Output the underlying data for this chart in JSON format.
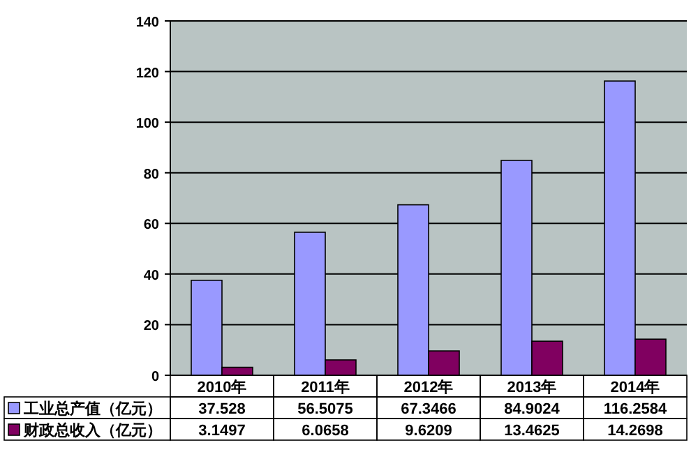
{
  "chart_data": {
    "type": "bar",
    "categories": [
      "2010年",
      "2011年",
      "2012年",
      "2013年",
      "2014年"
    ],
    "series": [
      {
        "name": "工业总产值（亿元）",
        "color": "#9999ff",
        "values": [
          37.528,
          56.5075,
          67.3466,
          84.9024,
          116.2584
        ]
      },
      {
        "name": "财政总收入（亿元）",
        "color": "#800060",
        "values": [
          3.1497,
          6.0658,
          9.6209,
          13.4625,
          14.2698
        ]
      }
    ],
    "ylim": [
      0,
      140
    ],
    "yticks": [
      0,
      20,
      40,
      60,
      80,
      100,
      120,
      140
    ],
    "grid": "y",
    "data_labels": true,
    "legend": "bottom"
  }
}
